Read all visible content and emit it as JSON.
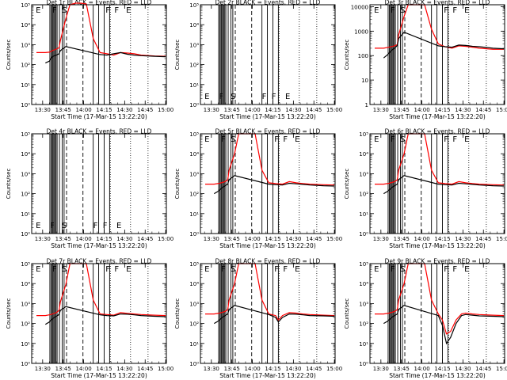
{
  "chart_data": [
    {
      "type": "line",
      "title": "Det 1r BLACK = Events, RED = LLD",
      "ylabel": "Counts/sec",
      "xlabel": "Start Time (17-Mar-15 13:22:20)",
      "xticks": [
        "13:30",
        "13:45",
        "14:00",
        "14:15",
        "14:30",
        "14:45",
        "15:00"
      ],
      "xlim": [
        "13:22",
        "15:02"
      ],
      "ytick_exponents": [
        0,
        1,
        2,
        3,
        4,
        5
      ],
      "ylim": [
        1,
        100000
      ],
      "yscale": "log",
      "flag_letters": [
        "E",
        "F",
        "S",
        "F",
        "F",
        "E"
      ],
      "has_data": true,
      "series": [
        {
          "name": "RED = LLD",
          "color": "#ff0000",
          "x_min": [
            3.5,
            10,
            13,
            14,
            15,
            18,
            20,
            21,
            25,
            28,
            32,
            36,
            40,
            45,
            50,
            55,
            60,
            65,
            70,
            75,
            80,
            90,
            98
          ],
          "y": [
            400,
            400,
            420,
            450,
            500,
            600,
            700,
            1600,
            20000,
            100000,
            120000,
            120000,
            110000,
            2000,
            400,
            350,
            300,
            400,
            380,
            350,
            300,
            270,
            260
          ]
        },
        {
          "name": "BLACK = Events",
          "color": "#000000",
          "x_min": [
            10,
            13,
            14,
            15,
            18,
            20,
            21,
            25,
            50,
            55,
            60,
            65,
            70,
            75,
            80,
            90,
            98
          ],
          "y": [
            120,
            150,
            200,
            250,
            300,
            350,
            500,
            800,
            320,
            300,
            350,
            400,
            330,
            300,
            280,
            260,
            250
          ]
        }
      ]
    },
    {
      "type": "line",
      "title": "Det 2r BLACK = Events, RED = LLD",
      "ylabel": "Counts/sec",
      "xlabel": "Start Time (17-Mar-15 13:22:20)",
      "xticks": [
        "13:30",
        "13:45",
        "14:00",
        "14:15",
        "14:30",
        "14:45",
        "15:00"
      ],
      "xlim": [
        "13:22",
        "15:02"
      ],
      "ytick_exponents": [
        0,
        1,
        2,
        3,
        4,
        5
      ],
      "ylim": [
        1,
        100000
      ],
      "yscale": "log",
      "flag_letters": [
        "E",
        "F",
        "S",
        "F",
        "F",
        "E"
      ],
      "has_data": false,
      "series": []
    },
    {
      "type": "line",
      "title": "Det 3r BLACK = Events, RED = LLD",
      "ylabel": "Counts/sec",
      "xlabel": "Start Time (17-Mar-15 13:22:20)",
      "xticks": [
        "13:30",
        "13:45",
        "14:00",
        "14:15",
        "14:30",
        "14:45",
        "15:00"
      ],
      "xlim": [
        "13:22",
        "15:02"
      ],
      "ytick_labels": [
        "1",
        "10",
        "100",
        "1000",
        "10000"
      ],
      "ylim": [
        1,
        12000
      ],
      "yscale": "log",
      "flag_letters": [
        "E",
        "F",
        "S",
        "F",
        "F",
        "E"
      ],
      "has_data": true,
      "series": [
        {
          "name": "RED = LLD",
          "color": "#ff0000",
          "x_min": [
            3.5,
            10,
            14,
            18,
            20,
            21,
            25,
            28,
            32,
            36,
            40,
            45,
            50,
            55,
            60,
            65,
            70,
            75,
            80,
            90,
            98
          ],
          "y": [
            200,
            200,
            220,
            250,
            280,
            700,
            4000,
            12000,
            12000,
            12000,
            12000,
            1200,
            300,
            230,
            200,
            250,
            240,
            220,
            200,
            180,
            180
          ]
        },
        {
          "name": "BLACK = Events",
          "color": "#000000",
          "x_min": [
            10,
            13,
            15,
            18,
            20,
            21,
            25,
            50,
            55,
            60,
            65,
            70,
            75,
            80,
            90,
            98
          ],
          "y": [
            80,
            110,
            150,
            200,
            260,
            500,
            900,
            250,
            230,
            220,
            270,
            260,
            240,
            230,
            200,
            190
          ]
        }
      ]
    },
    {
      "type": "line",
      "title": "Det 4r BLACK = Events, RED = LLD",
      "ylabel": "Counts/sec",
      "xlabel": "Start Time (17-Mar-15 13:22:20)",
      "xticks": [
        "13:30",
        "13:45",
        "14:00",
        "14:15",
        "14:30",
        "14:45",
        "15:00"
      ],
      "xlim": [
        "13:22",
        "15:02"
      ],
      "ytick_exponents": [
        0,
        1,
        2,
        3,
        4,
        5
      ],
      "ylim": [
        1,
        100000
      ],
      "yscale": "log",
      "flag_letters": [
        "E",
        "F",
        "S",
        "F",
        "F",
        "E"
      ],
      "has_data": false,
      "series": []
    },
    {
      "type": "line",
      "title": "Det 5r BLACK = Events, RED = LLD",
      "ylabel": "Counts/sec",
      "xlabel": "Start Time (17-Mar-15 13:22:20)",
      "xticks": [
        "13:30",
        "13:45",
        "14:00",
        "14:15",
        "14:30",
        "14:45",
        "15:00"
      ],
      "xlim": [
        "13:22",
        "15:02"
      ],
      "ytick_exponents": [
        0,
        1,
        2,
        3,
        4,
        5
      ],
      "ylim": [
        1,
        100000
      ],
      "yscale": "log",
      "flag_letters": [
        "E",
        "F",
        "S",
        "F",
        "F",
        "E"
      ],
      "has_data": true,
      "series": [
        {
          "name": "RED = LLD",
          "color": "#ff0000",
          "x_min": [
            3.5,
            10,
            14,
            18,
            20,
            21,
            25,
            28,
            32,
            36,
            40,
            45,
            50,
            55,
            60,
            65,
            70,
            75,
            80,
            90,
            98
          ],
          "y": [
            300,
            300,
            330,
            400,
            500,
            1500,
            10000,
            100000,
            100000,
            100000,
            100000,
            1500,
            350,
            320,
            300,
            400,
            350,
            320,
            300,
            280,
            270
          ]
        },
        {
          "name": "BLACK = Events",
          "color": "#000000",
          "x_min": [
            10,
            13,
            15,
            18,
            20,
            21,
            25,
            50,
            55,
            60,
            65,
            70,
            75,
            80,
            90,
            98
          ],
          "y": [
            100,
            130,
            180,
            250,
            300,
            500,
            800,
            300,
            280,
            270,
            330,
            310,
            290,
            270,
            250,
            240
          ]
        }
      ]
    },
    {
      "type": "line",
      "title": "Det 6r BLACK = Events, RED = LLD",
      "ylabel": "Counts/sec",
      "xlabel": "Start Time (17-Mar-15 13:22:20)",
      "xticks": [
        "13:30",
        "13:45",
        "14:00",
        "14:15",
        "14:30",
        "14:45",
        "15:00"
      ],
      "xlim": [
        "13:22",
        "15:02"
      ],
      "ytick_exponents": [
        0,
        1,
        2,
        3,
        4,
        5
      ],
      "ylim": [
        1,
        100000
      ],
      "yscale": "log",
      "flag_letters": [
        "E",
        "F",
        "S",
        "F",
        "F",
        "E"
      ],
      "has_data": true,
      "series": [
        {
          "name": "RED = LLD",
          "color": "#ff0000",
          "x_min": [
            3.5,
            10,
            14,
            18,
            20,
            21,
            25,
            28,
            32,
            36,
            40,
            45,
            50,
            55,
            60,
            65,
            70,
            75,
            80,
            90,
            98
          ],
          "y": [
            300,
            300,
            330,
            400,
            500,
            1500,
            10000,
            100000,
            100000,
            100000,
            100000,
            1500,
            350,
            320,
            300,
            400,
            350,
            320,
            300,
            280,
            270
          ]
        },
        {
          "name": "BLACK = Events",
          "color": "#000000",
          "x_min": [
            10,
            13,
            15,
            18,
            20,
            21,
            25,
            50,
            55,
            60,
            65,
            70,
            75,
            80,
            90,
            98
          ],
          "y": [
            100,
            130,
            180,
            250,
            300,
            500,
            800,
            300,
            280,
            270,
            330,
            310,
            290,
            270,
            250,
            240
          ]
        }
      ]
    },
    {
      "type": "line",
      "title": "Det 7r BLACK = Events, RED = LLD",
      "ylabel": "Counts/sec",
      "xlabel": "Start Time (17-Mar-15 13:22:20)",
      "xticks": [
        "13:30",
        "13:45",
        "14:00",
        "14:15",
        "14:30",
        "14:45",
        "15:00"
      ],
      "xlim": [
        "13:22",
        "15:02"
      ],
      "ytick_exponents": [
        0,
        1,
        2,
        3,
        4,
        5
      ],
      "ylim": [
        1,
        100000
      ],
      "yscale": "log",
      "flag_letters": [
        "E",
        "F",
        "S",
        "F",
        "F",
        "E"
      ],
      "has_data": true,
      "series": [
        {
          "name": "RED = LLD",
          "color": "#ff0000",
          "x_min": [
            3.5,
            10,
            14,
            18,
            20,
            21,
            25,
            28,
            32,
            36,
            40,
            45,
            50,
            55,
            60,
            65,
            70,
            75,
            80,
            90,
            98
          ],
          "y": [
            250,
            250,
            280,
            350,
            450,
            1200,
            9000,
            100000,
            100000,
            100000,
            100000,
            1500,
            300,
            280,
            260,
            350,
            320,
            300,
            280,
            260,
            250
          ]
        },
        {
          "name": "BLACK = Events",
          "color": "#000000",
          "x_min": [
            10,
            13,
            15,
            18,
            20,
            21,
            25,
            50,
            55,
            60,
            65,
            70,
            75,
            80,
            90,
            98
          ],
          "y": [
            90,
            120,
            170,
            230,
            280,
            450,
            700,
            270,
            250,
            240,
            300,
            290,
            270,
            250,
            230,
            220
          ]
        }
      ]
    },
    {
      "type": "line",
      "title": "Det 8r BLACK = Events, RED = LLD",
      "ylabel": "Counts/sec",
      "xlabel": "Start Time (17-Mar-15 13:22:20)",
      "xticks": [
        "13:30",
        "13:45",
        "14:00",
        "14:15",
        "14:30",
        "14:45",
        "15:00"
      ],
      "xlim": [
        "13:22",
        "15:02"
      ],
      "ytick_exponents": [
        0,
        1,
        2,
        3,
        4,
        5
      ],
      "ylim": [
        1,
        100000
      ],
      "yscale": "log",
      "flag_letters": [
        "E",
        "F",
        "S",
        "F",
        "F",
        "E"
      ],
      "has_data": true,
      "series": [
        {
          "name": "RED = LLD",
          "color": "#ff0000",
          "x_min": [
            3.5,
            10,
            14,
            18,
            20,
            21,
            25,
            28,
            32,
            36,
            40,
            45,
            50,
            55,
            57,
            60,
            65,
            70,
            75,
            80,
            90,
            98
          ],
          "y": [
            300,
            300,
            330,
            400,
            500,
            1500,
            10000,
            100000,
            100000,
            100000,
            100000,
            1500,
            300,
            250,
            150,
            250,
            350,
            330,
            300,
            280,
            260,
            250
          ]
        },
        {
          "name": "BLACK = Events",
          "color": "#000000",
          "x_min": [
            10,
            13,
            15,
            18,
            20,
            21,
            25,
            50,
            55,
            57,
            60,
            65,
            70,
            75,
            80,
            90,
            98
          ],
          "y": [
            100,
            130,
            180,
            250,
            300,
            500,
            800,
            280,
            200,
            120,
            200,
            300,
            290,
            270,
            250,
            240,
            230
          ]
        }
      ]
    },
    {
      "type": "line",
      "title": "Det 9r BLACK = Events, RED = LLD",
      "ylabel": "Counts/sec",
      "xlabel": "Start Time (17-Mar-15 13:22:20)",
      "xticks": [
        "13:30",
        "13:45",
        "14:00",
        "14:15",
        "14:30",
        "14:45",
        "15:00"
      ],
      "xlim": [
        "13:22",
        "15:02"
      ],
      "ytick_exponents": [
        0,
        1,
        2,
        3,
        4,
        5
      ],
      "ylim": [
        1,
        100000
      ],
      "yscale": "log",
      "flag_letters": [
        "E",
        "F",
        "S",
        "F",
        "F",
        "E"
      ],
      "has_data": true,
      "series": [
        {
          "name": "RED = LLD",
          "color": "#ff0000",
          "x_min": [
            3.5,
            10,
            14,
            18,
            20,
            21,
            25,
            28,
            32,
            36,
            40,
            45,
            50,
            53,
            56,
            59,
            63,
            67,
            70,
            75,
            80,
            90,
            98
          ],
          "y": [
            300,
            300,
            330,
            400,
            500,
            1500,
            10000,
            100000,
            100000,
            100000,
            100000,
            1500,
            300,
            150,
            30,
            40,
            150,
            300,
            330,
            300,
            280,
            260,
            250
          ]
        },
        {
          "name": "BLACK = Events",
          "color": "#000000",
          "x_min": [
            10,
            13,
            15,
            18,
            20,
            21,
            25,
            50,
            53,
            56,
            59,
            63,
            67,
            70,
            75,
            80,
            90,
            98
          ],
          "y": [
            100,
            130,
            180,
            250,
            300,
            500,
            800,
            250,
            80,
            10,
            20,
            100,
            250,
            280,
            260,
            240,
            230,
            220
          ]
        }
      ]
    }
  ]
}
